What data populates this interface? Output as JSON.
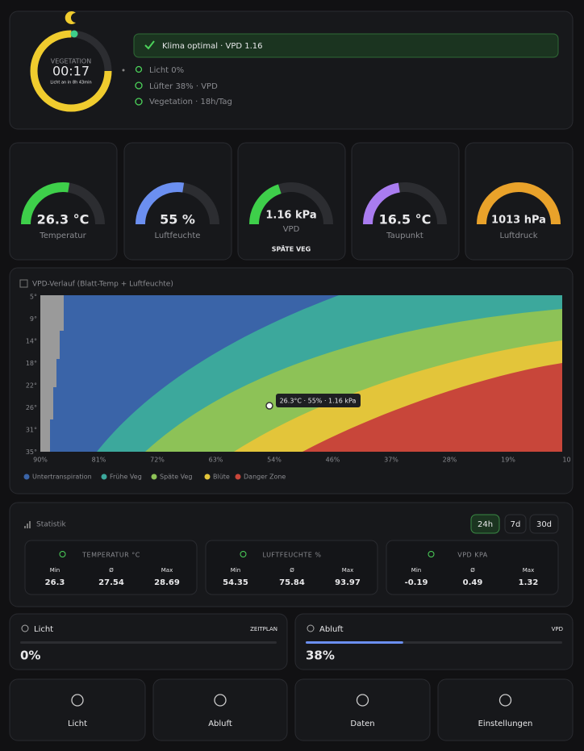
{
  "header": {
    "phase": "VEGETATION",
    "time": "00:17",
    "note": "Licht an in 8h 43min",
    "progress": 75,
    "status": "Klima optimal · VPD 1.16",
    "items": [
      "Licht 0%",
      "Lüfter 38% · VPD",
      "Vegetation · 18h/Tag"
    ]
  },
  "gauges": [
    {
      "value_label": "26.3 °C",
      "label": "Temperatur",
      "level": 55,
      "color": "#3ecf4a"
    },
    {
      "value_label": "55 %",
      "label": "Luftfeuchte",
      "level": 55,
      "color": "#6b8ff0"
    },
    {
      "value_label": "1.16 kPa",
      "label": "VPD",
      "phase": "SPÄTE VEG",
      "level": 40,
      "color": "#3ecf4a"
    },
    {
      "value_label": "16.5 °C",
      "label": "Taupunkt",
      "level": 45,
      "color": "#a97cf0"
    },
    {
      "value_label": "1013 hPa",
      "label": "Luftdruck",
      "level": 100,
      "color": "#e9a22a"
    }
  ],
  "vpd_chart": {
    "title": "VPD-Verlauf (Blatt-Temp + Luftfeuchte)",
    "yticks": [
      "5°",
      "9°",
      "14°",
      "18°",
      "22°",
      "26°",
      "31°",
      "35°"
    ],
    "xticks": [
      "90%",
      "81%",
      "72%",
      "63%",
      "54%",
      "46%",
      "37%",
      "28%",
      "19%",
      "10"
    ],
    "legend": [
      {
        "name": "Untertranspiration",
        "color": "#3a64a8"
      },
      {
        "name": "Frühe Veg",
        "color": "#3ca89c"
      },
      {
        "name": "Späte Veg",
        "color": "#8dc257"
      },
      {
        "name": "Blüte",
        "color": "#e3c53a"
      },
      {
        "name": "Danger Zone",
        "color": "#c8463a"
      }
    ],
    "tooltip": "26.3°C · 55% · 1.16 kPa"
  },
  "stats": {
    "title": "Statistik",
    "ranges": [
      "24h",
      "7d",
      "30d"
    ],
    "cards": [
      {
        "title": "TEMPERATUR °C",
        "labels": [
          "Min",
          "Ø",
          "Max"
        ],
        "values": [
          26.3,
          27.54,
          28.69
        ]
      },
      {
        "title": "LUFTFEUCHTE %",
        "labels": [
          "Min",
          "Ø",
          "Max"
        ],
        "values": [
          54.35,
          75.84,
          93.97
        ]
      },
      {
        "title": "VPD KPA",
        "labels": [
          "Min",
          "Ø",
          "Max"
        ],
        "values": [
          -0.19,
          0.49,
          1.32
        ]
      }
    ]
  },
  "controls": [
    {
      "name": "Licht",
      "tag": "ZEITPLAN",
      "value": 0,
      "value_label": "0%"
    },
    {
      "name": "Abluft",
      "tag": "VPD",
      "value": 38,
      "value_label": "38%"
    }
  ],
  "nav": [
    "Licht",
    "Abluft",
    "Daten",
    "Einstellungen"
  ]
}
